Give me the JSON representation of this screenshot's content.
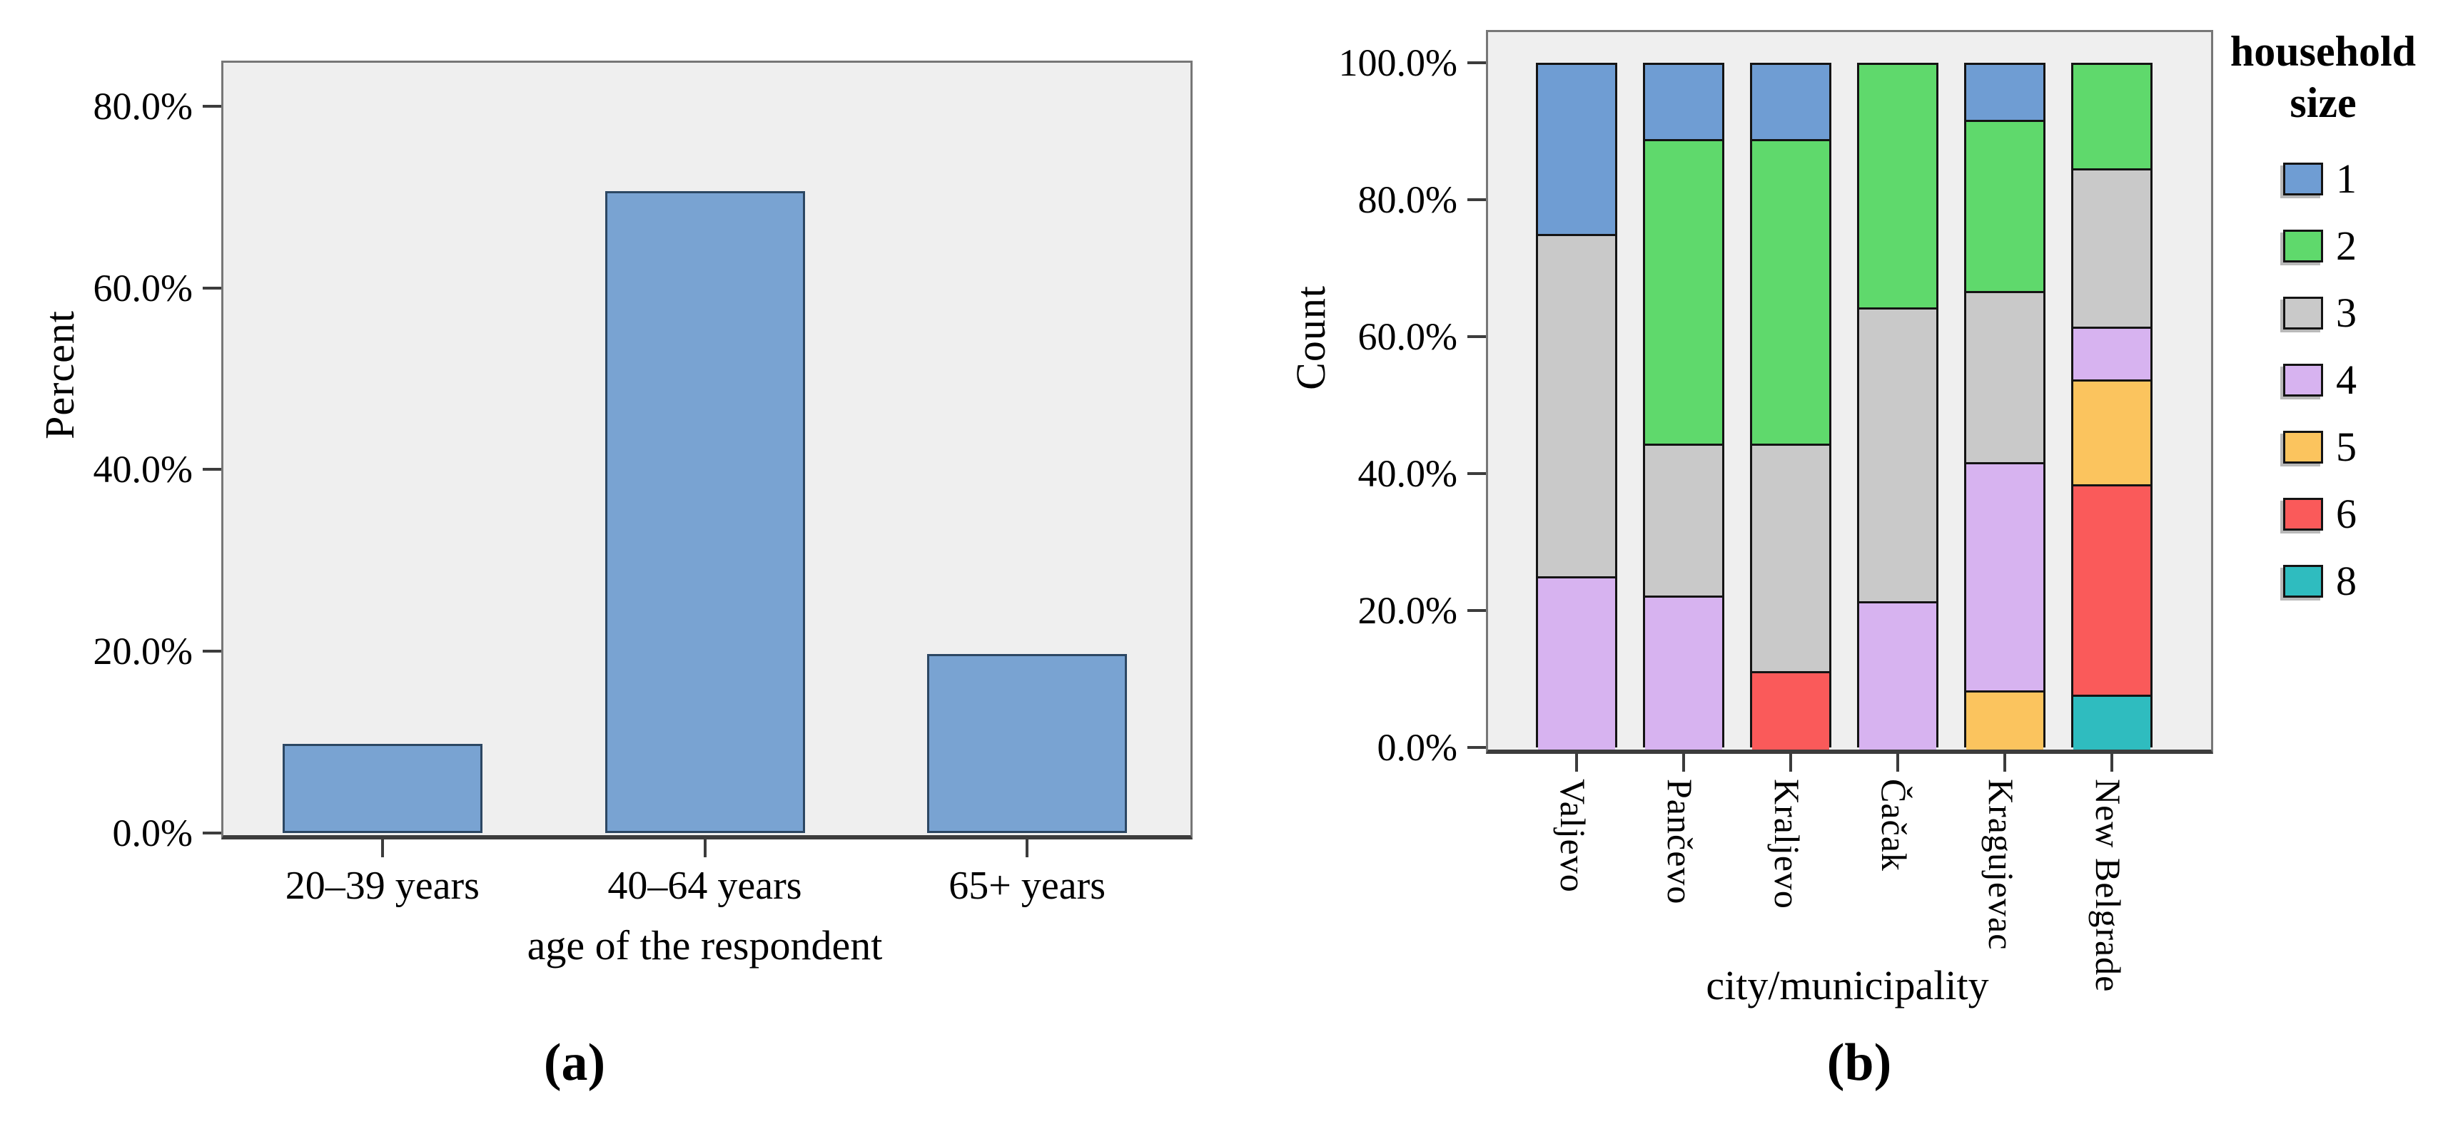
{
  "figure": {
    "panel_a_caption": "(a)",
    "panel_b_caption": "(b)"
  },
  "chart_data": [
    {
      "type": "bar",
      "panel": "a",
      "xlabel": "age of the respondent",
      "ylabel": "Percent",
      "categories": [
        "20–39 years",
        "40–64 years",
        "65+ years"
      ],
      "values": [
        9.8,
        70.6,
        19.7
      ],
      "unit": "percent",
      "bar_color": "#79A3D2",
      "bar_border_color": "#2c4763",
      "plot_bg": "#efefef",
      "grid": false,
      "ylim": [
        0,
        85
      ],
      "yticks": [
        {
          "label": "0.0%",
          "value": 0
        },
        {
          "label": "20.0%",
          "value": 20
        },
        {
          "label": "40.0%",
          "value": 40
        },
        {
          "label": "60.0%",
          "value": 60
        },
        {
          "label": "80.0%",
          "value": 80
        }
      ]
    },
    {
      "type": "stacked-bar",
      "panel": "b",
      "normalized_to_100": true,
      "xlabel": "city/municipality",
      "ylabel": "Count",
      "categories": [
        "Valjevo",
        "Pančevo",
        "Kraljevo",
        "Čačak",
        "Kragujevac",
        "New Belgrade"
      ],
      "legend_title": "household size",
      "legend_position": "right",
      "series": [
        {
          "name": "1",
          "color": "#6F9DD3",
          "values": [
            25.0,
            11.1,
            11.1,
            0,
            8.3,
            0
          ]
        },
        {
          "name": "2",
          "color": "#5FD96C",
          "values": [
            0,
            44.5,
            44.5,
            35.7,
            25.0,
            15.4
          ]
        },
        {
          "name": "3",
          "color": "#C9C9C9",
          "values": [
            50.0,
            22.2,
            33.3,
            42.9,
            25.0,
            23.1
          ]
        },
        {
          "name": "4",
          "color": "#D7B3F0",
          "values": [
            25.0,
            22.2,
            0,
            21.4,
            33.4,
            7.7
          ]
        },
        {
          "name": "5",
          "color": "#FBC45E",
          "values": [
            0,
            0,
            0,
            0,
            8.3,
            15.4
          ]
        },
        {
          "name": "6",
          "color": "#FA5A5A",
          "values": [
            0,
            0,
            11.1,
            0,
            0,
            30.7
          ]
        },
        {
          "name": "8",
          "color": "#2FBCBF",
          "values": [
            0,
            0,
            0,
            0,
            0,
            7.7
          ]
        }
      ],
      "stack_order_bottom_to_top": [
        "8",
        "6",
        "5",
        "4",
        "3",
        "2",
        "1"
      ],
      "plot_bg": "#efefef",
      "grid": false,
      "ylim": [
        0,
        104.8
      ],
      "yticks": [
        {
          "label": "0.0%",
          "value": 0
        },
        {
          "label": "20.0%",
          "value": 20
        },
        {
          "label": "40.0%",
          "value": 40
        },
        {
          "label": "60.0%",
          "value": 60
        },
        {
          "label": "80.0%",
          "value": 80
        },
        {
          "label": "100.0%",
          "value": 100
        }
      ]
    }
  ]
}
